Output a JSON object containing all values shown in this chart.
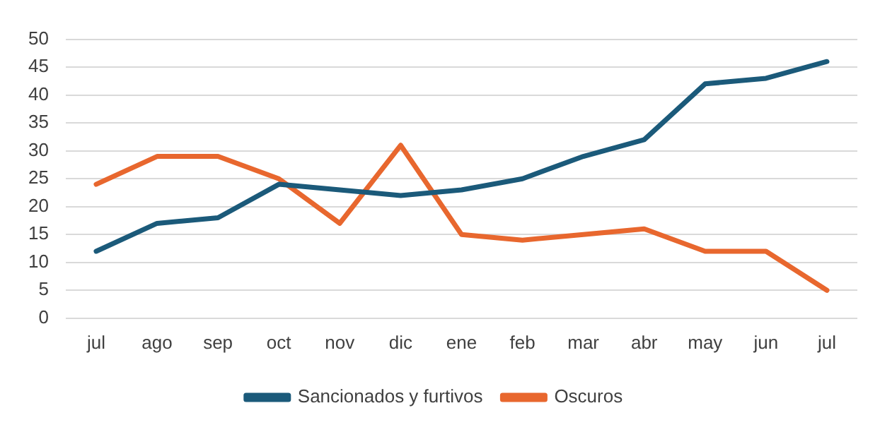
{
  "chart_data": {
    "type": "line",
    "categories": [
      "jul",
      "ago",
      "sep",
      "oct",
      "nov",
      "dic",
      "ene",
      "feb",
      "mar",
      "abr",
      "may",
      "jun",
      "jul"
    ],
    "series": [
      {
        "name": "Sancionados y furtivos",
        "color": "#1b5a7a",
        "values": [
          12,
          17,
          18,
          24,
          23,
          22,
          23,
          25,
          29,
          32,
          42,
          43,
          46
        ]
      },
      {
        "name": "Oscuros",
        "color": "#e8672e",
        "values": [
          24,
          29,
          29,
          25,
          17,
          31,
          15,
          14,
          15,
          16,
          12,
          12,
          5
        ]
      }
    ],
    "ylim": [
      0,
      50
    ],
    "yticks": [
      0,
      5,
      10,
      15,
      20,
      25,
      30,
      35,
      40,
      45,
      50
    ],
    "grid": "y",
    "legend": "bottom",
    "marker": "none",
    "line_style": "solid"
  }
}
